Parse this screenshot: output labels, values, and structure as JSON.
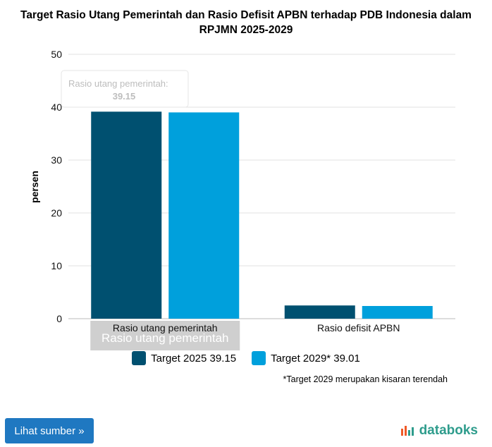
{
  "chart_data": {
    "type": "bar",
    "title": "Target Rasio Utang Pemerintah dan Rasio Defisit APBN terhadap PDB Indonesia dalam RPJMN 2025-2029",
    "ylabel": "persen",
    "xlabel": "",
    "ylim": [
      0,
      50
    ],
    "yticks": [
      0,
      10,
      20,
      30,
      40,
      50
    ],
    "categories": [
      "Rasio utang pemerintah",
      "Rasio defisit APBN"
    ],
    "series": [
      {
        "name": "Target 2025",
        "values": [
          39.15,
          2.5
        ],
        "color": "#005070"
      },
      {
        "name": "Target 2029*",
        "values": [
          39.01,
          2.4
        ],
        "color": "#00a0dc"
      }
    ],
    "tooltip": {
      "label": "Rasio utang pemerintah:",
      "value": "39.15"
    },
    "hover_category_overlay": "Rasio utang pemerintah",
    "grid": true
  },
  "legend": {
    "items": [
      {
        "label": "Target 2025 39.15",
        "color": "#005070"
      },
      {
        "label": "Target 2029* 39.01",
        "color": "#00a0dc"
      }
    ]
  },
  "footnote": "*Target 2029 merupakan kisaran terendah",
  "source_button": {
    "label": "Lihat sumber »"
  },
  "brand": {
    "name": "databoks"
  }
}
